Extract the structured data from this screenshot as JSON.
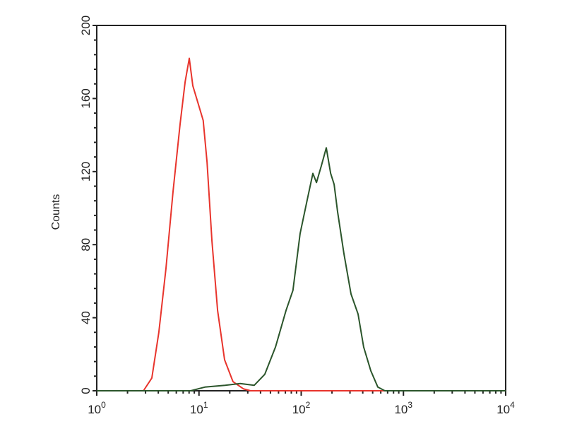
{
  "chart_data": {
    "type": "line",
    "title": "",
    "xlabel": "",
    "ylabel": "Counts",
    "x_scale": "log",
    "xlim": [
      1,
      10000
    ],
    "ylim": [
      0,
      200
    ],
    "grid": false,
    "x_ticks": [
      {
        "base": "10",
        "exp": "0"
      },
      {
        "base": "10",
        "exp": "1"
      },
      {
        "base": "10",
        "exp": "2"
      },
      {
        "base": "10",
        "exp": "3"
      },
      {
        "base": "10",
        "exp": "4"
      }
    ],
    "y_ticks": [
      "0",
      "40",
      "80",
      "120",
      "160",
      "200"
    ],
    "series": [
      {
        "color": "#e8342c",
        "x": [
          1,
          2.5,
          2.86,
          3.46,
          4.05,
          4.75,
          5.57,
          6.53,
          7.31,
          8.04,
          8.7,
          9.73,
          11.0,
          12.0,
          13.4,
          15.2,
          17.8,
          21.5,
          27.3,
          32,
          10000
        ],
        "y": [
          0,
          0,
          0,
          7,
          32,
          67,
          109,
          146,
          169,
          182,
          167,
          158,
          148,
          125,
          82,
          44,
          17,
          5,
          1,
          0,
          0
        ]
      },
      {
        "color": "#2b552b",
        "x": [
          1,
          8.3,
          11.4,
          18,
          25.3,
          34.7,
          44,
          56,
          71,
          83,
          97.5,
          114,
          130,
          141,
          157,
          176,
          194,
          210,
          227,
          262,
          307,
          360,
          408,
          479,
          562,
          659,
          10000
        ],
        "y": [
          0,
          0,
          2,
          3,
          4,
          3,
          9,
          24,
          44,
          55,
          86,
          104,
          119,
          114,
          123,
          133,
          119,
          113,
          98,
          75,
          53,
          42,
          24,
          11,
          2,
          0,
          0
        ]
      }
    ]
  }
}
